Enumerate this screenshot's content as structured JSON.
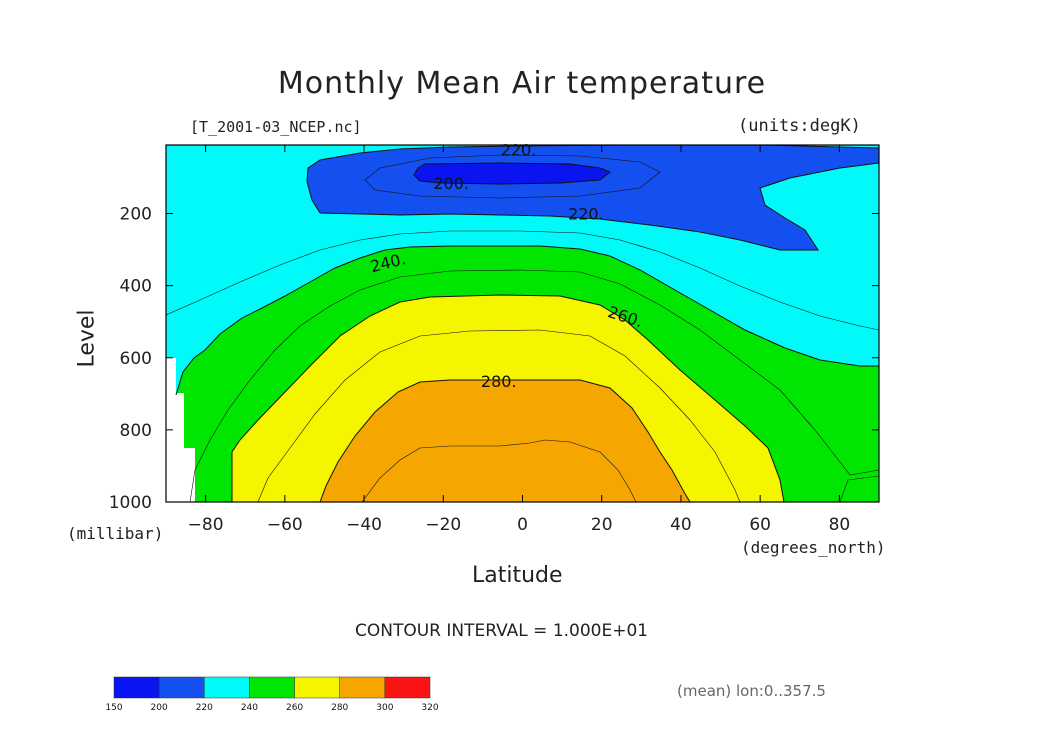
{
  "chart_data": {
    "type": "contour",
    "title": "Monthly Mean Air temperature",
    "source_label": "[T_2001-03_NCEP.nc]",
    "units_label": "(units:degK)",
    "xlabel": "Latitude",
    "xunit": "(degrees_north)",
    "ylabel": "Level",
    "yunit": "(millibar)",
    "xlim": [
      -90,
      90
    ],
    "ylim": [
      10,
      1000
    ],
    "y_inverted": true,
    "x_ticks": [
      "−80",
      "−60",
      "−40",
      "−20",
      "0",
      "20",
      "40",
      "60",
      "80"
    ],
    "x_tick_values": [
      -80,
      -60,
      -40,
      -20,
      0,
      20,
      40,
      60,
      80
    ],
    "y_ticks": [
      "200",
      "400",
      "600",
      "800",
      "1000"
    ],
    "y_tick_values": [
      200,
      400,
      600,
      800,
      1000
    ],
    "contour_interval": "CONTOUR INTERVAL = 1.000E+01",
    "averaging_note": "(mean) lon:0..357.5",
    "contour_labels": [
      {
        "text": "220.",
        "lat": -1,
        "level": 22
      },
      {
        "text": "200.",
        "lat": -18,
        "level": 115
      },
      {
        "text": "220.",
        "lat": 16,
        "level": 200
      },
      {
        "text": "240.",
        "lat": -34,
        "level": 335
      },
      {
        "text": "260.",
        "lat": 26,
        "level": 485
      },
      {
        "text": "280.",
        "lat": -6,
        "level": 665
      }
    ],
    "fill_bands": [
      {
        "range": [
          190,
          200
        ],
        "color": "#0a14f0"
      },
      {
        "range": [
          200,
          220
        ],
        "color": "#1450f0"
      },
      {
        "range": [
          220,
          240
        ],
        "color": "#00fafa"
      },
      {
        "range": [
          240,
          260
        ],
        "color": "#00e600"
      },
      {
        "range": [
          260,
          280
        ],
        "color": "#f5f500"
      },
      {
        "range": [
          280,
          300
        ],
        "color": "#f5a600"
      }
    ],
    "colorbar": {
      "labels": [
        "150",
        "200",
        "220",
        "240",
        "260",
        "280",
        "300",
        "320"
      ],
      "colors": [
        "#0a14f0",
        "#1450f0",
        "#00fafa",
        "#00e600",
        "#f5f500",
        "#f5a600",
        "#fa1414"
      ]
    }
  }
}
